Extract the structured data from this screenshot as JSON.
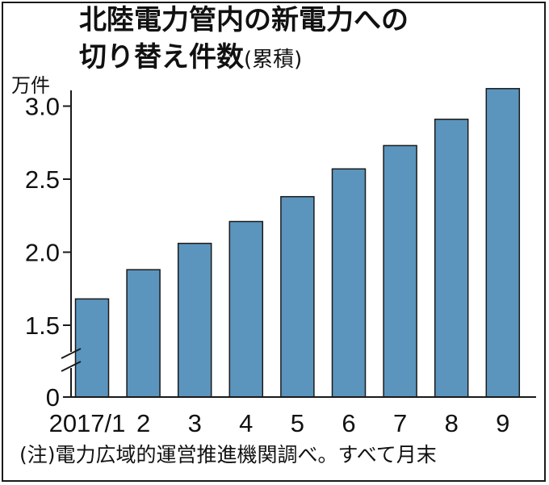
{
  "chart_data": {
    "type": "bar",
    "title_line1": "北陸電力管内の新電力への",
    "title_line2": "切り替え件数",
    "title_suffix": "(累積)",
    "unit_label": "万件",
    "categories": [
      "2017/1",
      "2",
      "3",
      "4",
      "5",
      "6",
      "7",
      "8",
      "9"
    ],
    "values": [
      1.68,
      1.88,
      2.06,
      2.21,
      2.38,
      2.57,
      2.73,
      2.91,
      3.12
    ],
    "y_ticks": [
      "0",
      "1.5",
      "2.0",
      "2.5",
      "3.0"
    ],
    "y_tick_values": [
      0,
      1.5,
      2.0,
      2.5,
      3.0
    ],
    "ylim": [
      0,
      3.2
    ],
    "axis_break": "between 0 and 1.5",
    "bar_color": "#5b95bd",
    "bar_edge_color": "#1a1a1a",
    "grid": false,
    "legend": "none",
    "note": "(注)電力広域的運営推進機関調べ。すべて月末"
  }
}
